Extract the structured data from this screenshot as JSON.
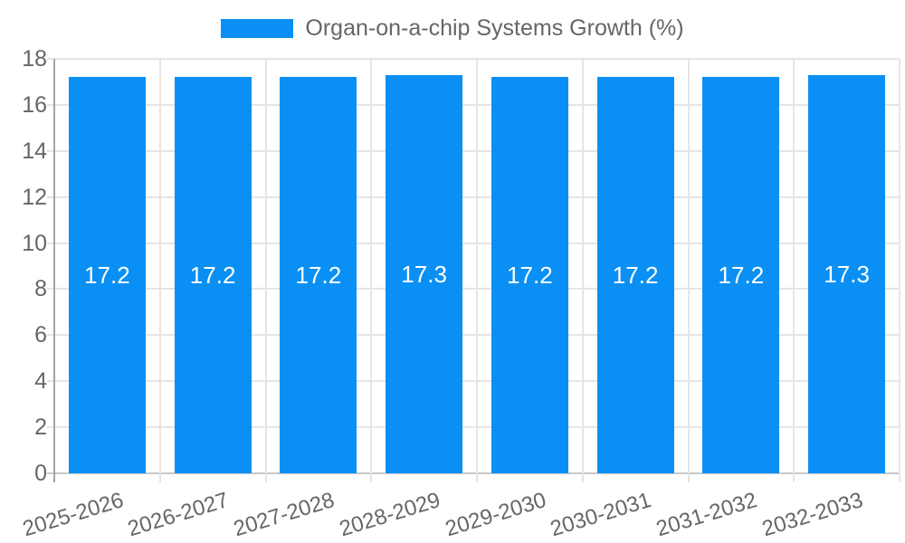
{
  "legend": {
    "label": "Organ-on-a-chip Systems Growth (%)"
  },
  "chart_data": {
    "type": "bar",
    "title": "Organ-on-a-chip Systems Growth (%)",
    "series_name": "Organ-on-a-chip Systems Growth (%)",
    "categories": [
      "2025-2026",
      "2026-2027",
      "2027-2028",
      "2028-2029",
      "2029-2030",
      "2030-2031",
      "2031-2032",
      "2032-2033"
    ],
    "values": [
      17.2,
      17.2,
      17.2,
      17.3,
      17.2,
      17.2,
      17.2,
      17.3
    ],
    "value_labels": [
      "17.2",
      "17.2",
      "17.2",
      "17.3",
      "17.2",
      "17.2",
      "17.2",
      "17.3"
    ],
    "xlabel": "",
    "ylabel": "",
    "ylim": [
      0,
      18
    ],
    "ytick_step": 2,
    "yticks": [
      0,
      2,
      4,
      6,
      8,
      10,
      12,
      14,
      16,
      18
    ],
    "grid": true,
    "legend_position": "top-center",
    "x_label_rotation_deg": -17
  },
  "colors": {
    "bar": "#0A90F4",
    "grid": "#E5E5E5",
    "axis": "#A4A4A4",
    "baseline": "#C9C9C9",
    "tick_text": "#666666",
    "value_text": "#FFFFFF",
    "background": "#FFFFFF"
  }
}
